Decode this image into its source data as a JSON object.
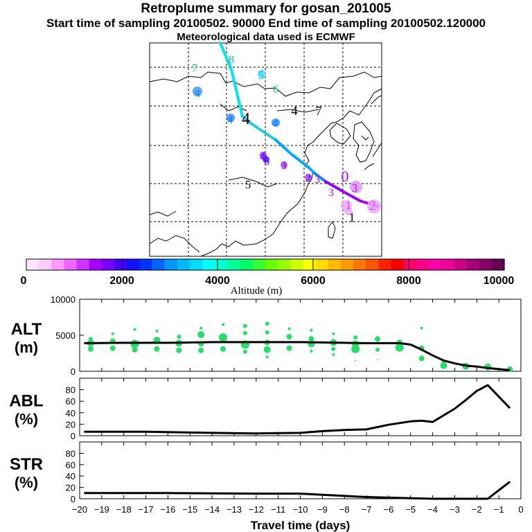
{
  "header": {
    "title": "Retroplume summary for gosan_201005",
    "sampling": "Start time of sampling 20100502. 90000     End time of sampling 20100502.120000",
    "met": "Meteorological data used is ECMWF"
  },
  "colorbar": {
    "ticks": [
      "0",
      "2000",
      "4000",
      "6000",
      "8000",
      "10000"
    ],
    "label": "Altitude (m)",
    "colors": [
      "#ffe6ff",
      "#ffccff",
      "#ff99ff",
      "#ee66ff",
      "#cc33ff",
      "#aa00ff",
      "#7700ff",
      "#4400ff",
      "#1111ff",
      "#0033ff",
      "#0066ff",
      "#0099ff",
      "#00bbff",
      "#00ddff",
      "#00ffff",
      "#00ffcc",
      "#00ff99",
      "#00ff66",
      "#33ff33",
      "#66ff00",
      "#99ff00",
      "#ccff00",
      "#ffff00",
      "#ffdd00",
      "#ffbb00",
      "#ff9900",
      "#ff7700",
      "#ff5500",
      "#ff2200",
      "#ff0000",
      "#ff0066",
      "#ff0088",
      "#ff00aa",
      "#ee0099",
      "#cc0088",
      "#aa0077",
      "#880066",
      "#660055"
    ]
  },
  "map": {
    "trajectory_colors": [
      "#00e5e5",
      "#22ccdd",
      "#00aaff",
      "#0088ff",
      "#9900ff",
      "#aa00ee"
    ],
    "labels": [
      {
        "text": "7",
        "color": "#00cc99"
      },
      {
        "text": "8",
        "color": "#00cc99"
      },
      {
        "text": "5",
        "color": "#00bbee"
      },
      {
        "text": "6",
        "color": "#00bb88"
      },
      {
        "text": "4",
        "color": "#0088ff"
      },
      {
        "text": "4",
        "color": "#0077ff"
      },
      {
        "text": "4",
        "color": "#000000"
      },
      {
        "text": "4",
        "color": "#0088ff"
      },
      {
        "text": "4",
        "color": "#000000"
      },
      {
        "text": "7",
        "color": "#000000"
      },
      {
        "text": "4",
        "color": "#7700ff"
      },
      {
        "text": "6",
        "color": "#4400ff"
      },
      {
        "text": "3",
        "color": "#9900ff"
      },
      {
        "text": "5",
        "color": "#000000"
      },
      {
        "text": "2",
        "color": "#6600ff"
      },
      {
        "text": "3",
        "color": "#aa00ff"
      },
      {
        "text": "0",
        "color": "#bb00ff"
      },
      {
        "text": "3",
        "color": "#cc00ff"
      },
      {
        "text": "3",
        "color": "#cc00ff"
      },
      {
        "text": "1",
        "color": "#ee44ff"
      },
      {
        "text": "2",
        "color": "#ee44ff"
      },
      {
        "text": "1",
        "color": "#000000"
      }
    ]
  },
  "chart_data": [
    {
      "type": "line",
      "panel": "ALT",
      "ylabel": "ALT\n(m)",
      "ylabel_line1": "ALT",
      "ylabel_line2": "(m)",
      "ylim": [
        0,
        10000
      ],
      "yticks": [
        "0",
        "5000",
        "10000"
      ],
      "series": [
        {
          "name": "mean altitude",
          "x": [
            -19.8,
            -18,
            -16,
            -14,
            -12,
            -10,
            -9,
            -8,
            -7,
            -6,
            -5.5,
            -5,
            -4.5,
            -4,
            -3.5,
            -3,
            -2.5,
            -2,
            -1.5,
            -1,
            -0.5
          ],
          "y": [
            3900,
            3950,
            3950,
            4050,
            4050,
            4050,
            4000,
            3950,
            3900,
            3900,
            3900,
            3700,
            3000,
            2200,
            1500,
            1100,
            800,
            650,
            450,
            300,
            150
          ]
        }
      ],
      "markers": [
        {
          "x": -19.5,
          "y": 3900,
          "s": 5
        },
        {
          "x": -19.5,
          "y": 3100,
          "s": 4
        },
        {
          "x": -19.5,
          "y": 4500,
          "s": 3
        },
        {
          "x": -18.5,
          "y": 4200,
          "s": 4
        },
        {
          "x": -18.5,
          "y": 3200,
          "s": 4
        },
        {
          "x": -18.5,
          "y": 5200,
          "s": 2
        },
        {
          "x": -17.5,
          "y": 3800,
          "s": 6
        },
        {
          "x": -17.5,
          "y": 3000,
          "s": 4
        },
        {
          "x": -17.5,
          "y": 5800,
          "s": 2
        },
        {
          "x": -16.5,
          "y": 4300,
          "s": 5
        },
        {
          "x": -16.5,
          "y": 3100,
          "s": 4
        },
        {
          "x": -16.5,
          "y": 5600,
          "s": 2
        },
        {
          "x": -15.5,
          "y": 3900,
          "s": 5
        },
        {
          "x": -15.5,
          "y": 2900,
          "s": 4
        },
        {
          "x": -15.5,
          "y": 4800,
          "s": 3
        },
        {
          "x": -14.5,
          "y": 3800,
          "s": 4
        },
        {
          "x": -14.5,
          "y": 2900,
          "s": 4
        },
        {
          "x": -14.5,
          "y": 5100,
          "s": 5
        },
        {
          "x": -14.5,
          "y": 6000,
          "s": 2
        },
        {
          "x": -13.5,
          "y": 4700,
          "s": 6
        },
        {
          "x": -13.5,
          "y": 3100,
          "s": 4
        },
        {
          "x": -13.5,
          "y": 6500,
          "s": 2
        },
        {
          "x": -12.5,
          "y": 3700,
          "s": 6
        },
        {
          "x": -12.5,
          "y": 2700,
          "s": 3
        },
        {
          "x": -12.5,
          "y": 5300,
          "s": 3
        },
        {
          "x": -12.5,
          "y": 6300,
          "s": 3
        },
        {
          "x": -11.5,
          "y": 3000,
          "s": 5
        },
        {
          "x": -11.5,
          "y": 4000,
          "s": 4
        },
        {
          "x": -11.5,
          "y": 5400,
          "s": 3
        },
        {
          "x": -11.5,
          "y": 6600,
          "s": 3
        },
        {
          "x": -11.5,
          "y": 2000,
          "s": 2
        },
        {
          "x": -10.5,
          "y": 3200,
          "s": 4
        },
        {
          "x": -10.5,
          "y": 4800,
          "s": 4
        },
        {
          "x": -10.5,
          "y": 5900,
          "s": 2
        },
        {
          "x": -9.5,
          "y": 3800,
          "s": 5
        },
        {
          "x": -9.5,
          "y": 4500,
          "s": 4
        },
        {
          "x": -9.5,
          "y": 2800,
          "s": 2
        },
        {
          "x": -9.5,
          "y": 5700,
          "s": 2
        },
        {
          "x": -8.5,
          "y": 4000,
          "s": 5
        },
        {
          "x": -8.5,
          "y": 3100,
          "s": 3
        },
        {
          "x": -8.5,
          "y": 2300,
          "s": 2
        },
        {
          "x": -8.5,
          "y": 5200,
          "s": 2
        },
        {
          "x": -7.5,
          "y": 3100,
          "s": 6
        },
        {
          "x": -7.5,
          "y": 3800,
          "s": 5
        },
        {
          "x": -7.5,
          "y": 4700,
          "s": 3
        },
        {
          "x": -7.5,
          "y": 1500,
          "s": 1
        },
        {
          "x": -6.5,
          "y": 4500,
          "s": 4
        },
        {
          "x": -6.5,
          "y": 3000,
          "s": 3
        },
        {
          "x": -6.5,
          "y": 1600,
          "s": 1
        },
        {
          "x": -5.5,
          "y": 3300,
          "s": 6
        },
        {
          "x": -5.5,
          "y": 4000,
          "s": 4
        },
        {
          "x": -4.5,
          "y": 3200,
          "s": 4
        },
        {
          "x": -4.5,
          "y": 1800,
          "s": 4
        },
        {
          "x": -4.5,
          "y": 6000,
          "s": 2
        },
        {
          "x": -3.5,
          "y": 800,
          "s": 5
        },
        {
          "x": -3.5,
          "y": 1300,
          "s": 3
        },
        {
          "x": -2.5,
          "y": 700,
          "s": 5
        },
        {
          "x": -1.5,
          "y": 600,
          "s": 5
        },
        {
          "x": -0.5,
          "y": 300,
          "s": 4
        }
      ]
    },
    {
      "type": "line",
      "panel": "ABL",
      "ylabel": "ABL\n(%)",
      "ylabel_line1": "ABL",
      "ylabel_line2": "(%)",
      "ylim": [
        0,
        100
      ],
      "yticks": [
        "0",
        "20",
        "40",
        "60",
        "80"
      ],
      "series": [
        {
          "name": "ABL fraction",
          "x": [
            -19.8,
            -17,
            -14,
            -12,
            -10,
            -9,
            -8,
            -7,
            -6,
            -5,
            -4.5,
            -4,
            -3,
            -2.5,
            -2,
            -1.5,
            -1,
            -0.5
          ],
          "y": [
            7,
            7,
            5,
            4,
            5,
            8,
            10,
            11,
            19,
            25,
            26,
            24,
            47,
            62,
            78,
            88,
            68,
            48
          ]
        }
      ]
    },
    {
      "type": "line",
      "panel": "STR",
      "ylabel": "STR\n(%)",
      "ylabel_line1": "STR",
      "ylabel_line2": "(%)",
      "ylim": [
        0,
        100
      ],
      "yticks": [
        "0",
        "20",
        "40",
        "60",
        "80"
      ],
      "xlabel": "Travel time (days)",
      "xticks": [
        "-20",
        "-19",
        "-18",
        "-17",
        "-16",
        "-15",
        "-14",
        "-13",
        "-12",
        "-11",
        "-10",
        "-9",
        "-8",
        "-7",
        "-6",
        "-5",
        "-4",
        "-3",
        "-2",
        "-1",
        "0"
      ],
      "series": [
        {
          "name": "stratospheric fraction",
          "x": [
            -19.8,
            -16,
            -12,
            -10,
            -9,
            -8,
            -7,
            -6,
            -5,
            -4,
            -3,
            -2,
            -1.5,
            -1,
            -0.5
          ],
          "y": [
            10,
            10,
            9,
            9,
            7,
            5,
            3,
            2,
            1,
            0,
            0,
            0,
            0,
            15,
            30
          ]
        }
      ]
    }
  ]
}
